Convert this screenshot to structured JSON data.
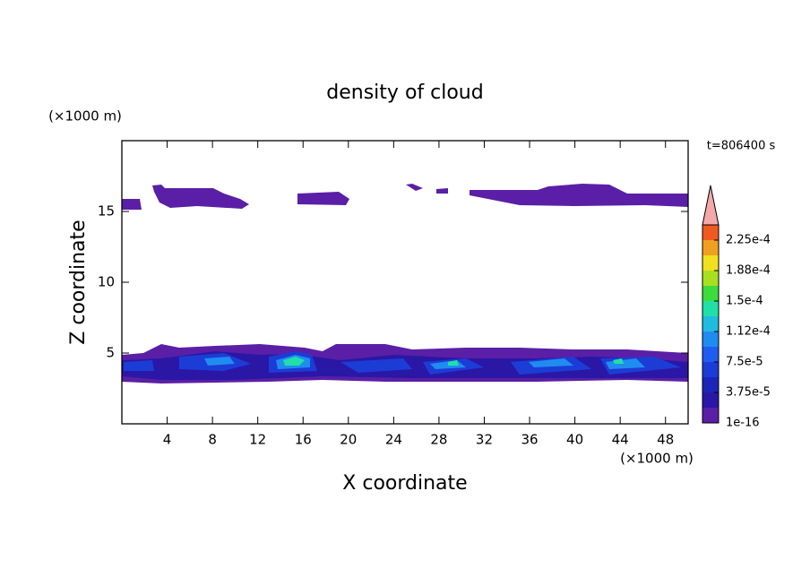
{
  "chart_data": {
    "type": "contour",
    "title": "density of cloud",
    "x_label": "X coordinate",
    "y_label": "Z coordinate",
    "x_unit": "(×1000 m)",
    "y_unit": "(×1000 m)",
    "annotation": "t=806400 s",
    "xlim": [
      0,
      50
    ],
    "xticks": [
      4,
      8,
      12,
      16,
      20,
      24,
      28,
      32,
      36,
      40,
      44,
      48
    ],
    "ylim": [
      0,
      20
    ],
    "yticks": [
      5,
      10,
      15
    ],
    "colorbar": {
      "lim": [
        1e-16,
        0.00024375
      ],
      "levels": [
        1e-16,
        1.875e-05,
        3.75e-05,
        5.625e-05,
        7.5e-05,
        9.375e-05,
        0.0001125,
        0.00013125,
        0.00015,
        0.00016875,
        0.0001875,
        0.00020625,
        0.000225
      ],
      "colors": [
        "#5a1fa6",
        "#2a17a6",
        "#1b26b8",
        "#1c3cd6",
        "#1f5cf0",
        "#208cf0",
        "#20bce0",
        "#20e0a8",
        "#3cdc3c",
        "#a8e020",
        "#f0e020",
        "#f0a020",
        "#f05a20"
      ],
      "over_color": "#f4a8a8",
      "ticks": [
        {
          "value": 1e-16,
          "label": "1e-16"
        },
        {
          "value": 3.75e-05,
          "label": "3.75e-5"
        },
        {
          "value": 7.5e-05,
          "label": "7.5e-5"
        },
        {
          "value": 0.0001125,
          "label": "1.12e-4"
        },
        {
          "value": 0.00015,
          "label": "1.5e-4"
        },
        {
          "value": 0.0001875,
          "label": "1.88e-4"
        },
        {
          "value": 0.000225,
          "label": "2.25e-4"
        }
      ]
    }
  }
}
